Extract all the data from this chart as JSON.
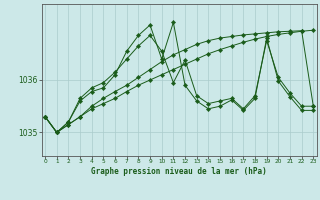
{
  "title": "Graphe pression niveau de la mer (hPa)",
  "background_color": "#cce8e8",
  "grid_color": "#aacccc",
  "line_color": "#1a5c1a",
  "x_ticks": [
    0,
    1,
    2,
    3,
    4,
    5,
    6,
    7,
    8,
    9,
    10,
    11,
    12,
    13,
    14,
    15,
    16,
    17,
    18,
    19,
    20,
    21,
    22,
    23
  ],
  "y_ticks": [
    1035,
    1036
  ],
  "ylim": [
    1034.55,
    1037.45
  ],
  "xlim": [
    -0.3,
    23.3
  ],
  "series": [
    [
      1035.3,
      1035.0,
      1035.15,
      1035.3,
      1035.45,
      1035.55,
      1035.65,
      1035.78,
      1035.9,
      1036.0,
      1036.1,
      1036.2,
      1036.3,
      1036.4,
      1036.5,
      1036.58,
      1036.65,
      1036.72,
      1036.78,
      1036.83,
      1036.87,
      1036.9,
      1036.93,
      1036.95
    ],
    [
      1035.3,
      1035.0,
      1035.15,
      1035.3,
      1035.5,
      1035.65,
      1035.78,
      1035.9,
      1036.05,
      1036.2,
      1036.35,
      1036.48,
      1036.58,
      1036.68,
      1036.75,
      1036.8,
      1036.83,
      1036.86,
      1036.88,
      1036.9,
      1036.92,
      1036.93,
      1036.94,
      1035.5
    ],
    [
      1035.3,
      1035.0,
      1035.2,
      1035.65,
      1035.85,
      1035.95,
      1036.15,
      1036.4,
      1036.65,
      1036.85,
      1036.55,
      1035.95,
      1036.38,
      1035.7,
      1035.55,
      1035.6,
      1035.65,
      1035.45,
      1035.7,
      1036.75,
      1036.05,
      1035.75,
      1035.5,
      1035.5
    ],
    [
      1035.3,
      1035.0,
      1035.2,
      1035.6,
      1035.78,
      1035.85,
      1036.1,
      1036.55,
      1036.85,
      1037.05,
      1036.4,
      1037.1,
      1035.9,
      1035.6,
      1035.45,
      1035.5,
      1035.62,
      1035.42,
      1035.65,
      1036.8,
      1035.98,
      1035.68,
      1035.42,
      1035.42
    ]
  ]
}
